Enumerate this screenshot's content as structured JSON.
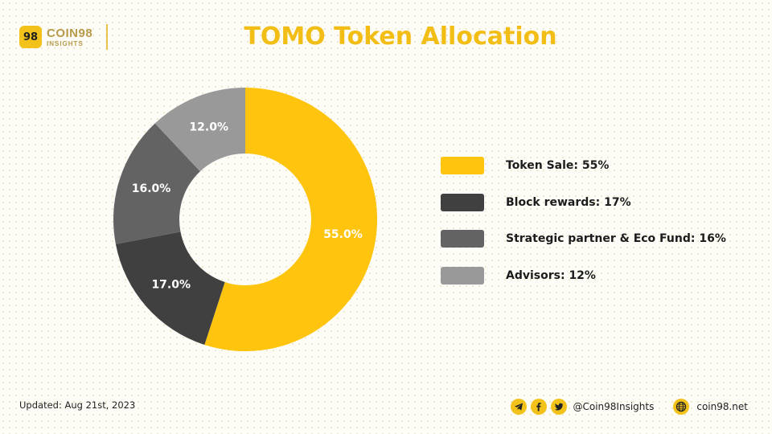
{
  "brand": {
    "badge_text": "98",
    "name": "COIN98",
    "sub": "INSIGHTS",
    "accent": "#f2c21b"
  },
  "title": "TOMO Token Allocation",
  "chart_data": {
    "type": "pie",
    "donut": true,
    "title": "TOMO Token Allocation",
    "slices": [
      {
        "label": "Token Sale: 55%",
        "value": 55.0,
        "data_label": "55.0%",
        "color": "#ffc40d"
      },
      {
        "label": "Block rewards: 17%",
        "value": 17.0,
        "data_label": "17.0%",
        "color": "#404040"
      },
      {
        "label": "Strategic partner & Eco Fund: 16%",
        "value": 16.0,
        "data_label": "16.0%",
        "color": "#636363"
      },
      {
        "label": "Advisors: 12%",
        "value": 12.0,
        "data_label": "12.0%",
        "color": "#999999"
      }
    ],
    "legend_position": "right"
  },
  "footer": {
    "updated": "Updated: Aug 21st, 2023",
    "social_icons": [
      "telegram-icon",
      "facebook-icon",
      "twitter-icon"
    ],
    "handle": "@Coin98Insights",
    "site_icon": "globe-icon",
    "site": "coin98.net"
  }
}
